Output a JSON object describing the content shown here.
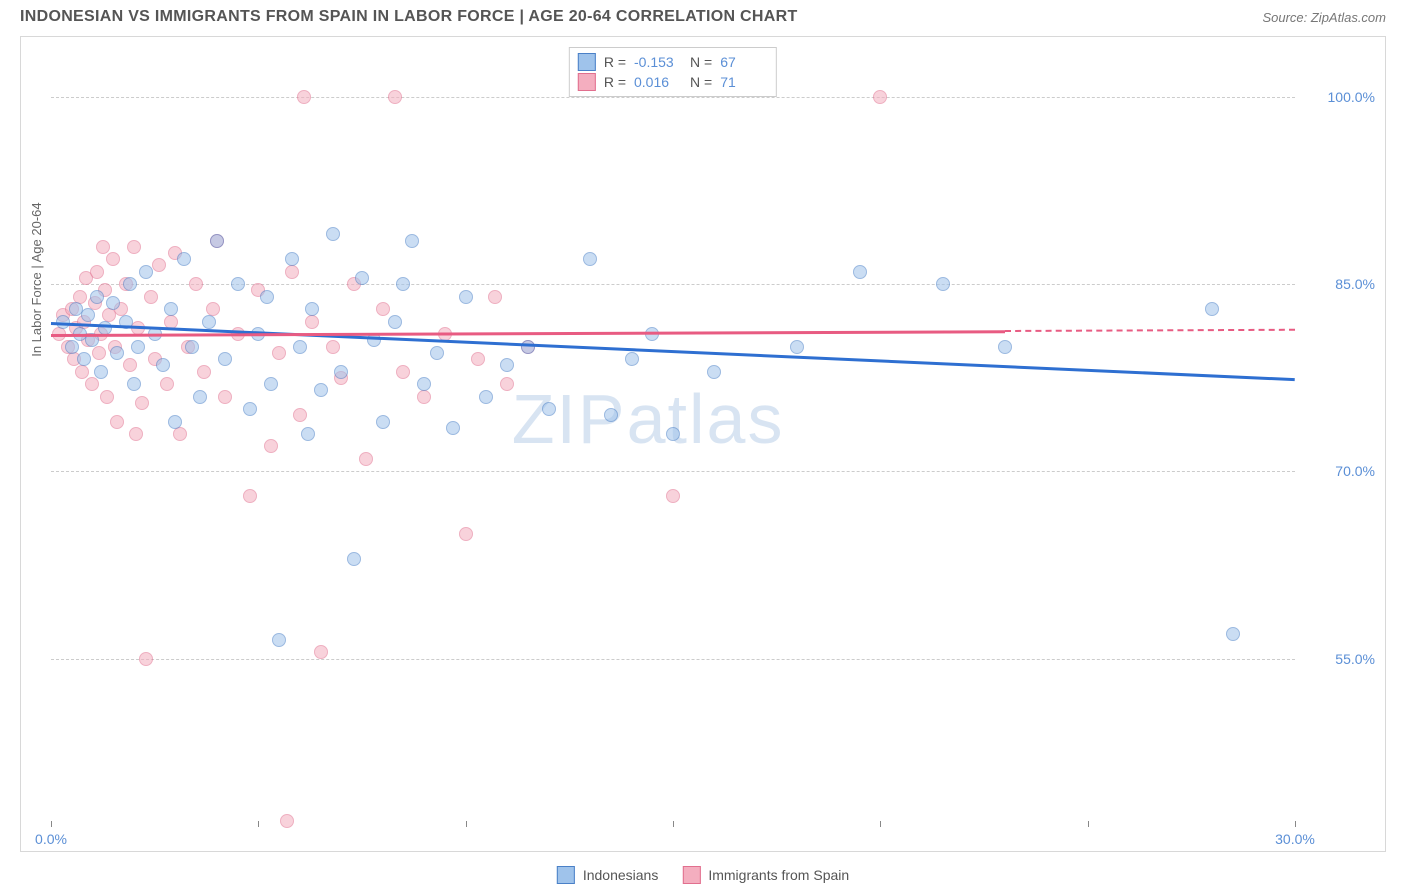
{
  "header": {
    "title": "INDONESIAN VS IMMIGRANTS FROM SPAIN IN LABOR FORCE | AGE 20-64 CORRELATION CHART",
    "source_prefix": "Source: ",
    "source_name": "ZipAtlas.com"
  },
  "chart": {
    "type": "scatter",
    "ylabel": "In Labor Force | Age 20-64",
    "watermark": "ZIPatlas",
    "background_color": "#ffffff",
    "border_color": "#d8d8d8",
    "grid_color": "#cccccc",
    "tick_label_color": "#5b8fd6",
    "xlim": [
      0,
      30
    ],
    "ylim": [
      42,
      104
    ],
    "xticks": [
      0,
      5,
      10,
      15,
      20,
      25,
      30
    ],
    "xtick_labels": {
      "0": "0.0%",
      "30": "30.0%"
    },
    "yticks": [
      55,
      70,
      85,
      100
    ],
    "ytick_labels": {
      "55": "55.0%",
      "70": "70.0%",
      "85": "85.0%",
      "100": "100.0%"
    },
    "series": [
      {
        "key": "indonesians",
        "label": "Indonesians",
        "fill": "#9fc3eb",
        "fill_opacity": 0.55,
        "stroke": "#4a80c7",
        "trend_color": "#2e6fd1",
        "R": "-0.153",
        "N": "67",
        "trend": {
          "x0": 0,
          "y0": 82,
          "x1": 30,
          "y1": 77.5
        },
        "points": [
          [
            0.3,
            82
          ],
          [
            0.5,
            80
          ],
          [
            0.6,
            83
          ],
          [
            0.7,
            81
          ],
          [
            0.8,
            79
          ],
          [
            0.9,
            82.5
          ],
          [
            1.0,
            80.5
          ],
          [
            1.1,
            84
          ],
          [
            1.2,
            78
          ],
          [
            1.3,
            81.5
          ],
          [
            1.5,
            83.5
          ],
          [
            1.6,
            79.5
          ],
          [
            1.8,
            82
          ],
          [
            1.9,
            85
          ],
          [
            2.0,
            77
          ],
          [
            2.1,
            80
          ],
          [
            2.3,
            86
          ],
          [
            2.5,
            81
          ],
          [
            2.7,
            78.5
          ],
          [
            2.9,
            83
          ],
          [
            3.0,
            74
          ],
          [
            3.2,
            87
          ],
          [
            3.4,
            80
          ],
          [
            3.6,
            76
          ],
          [
            3.8,
            82
          ],
          [
            4.0,
            88.5
          ],
          [
            4.2,
            79
          ],
          [
            4.5,
            85
          ],
          [
            4.8,
            75
          ],
          [
            5.0,
            81
          ],
          [
            5.3,
            77
          ],
          [
            5.5,
            56.5
          ],
          [
            5.8,
            87
          ],
          [
            6.0,
            80
          ],
          [
            6.3,
            83
          ],
          [
            6.5,
            76.5
          ],
          [
            6.8,
            89
          ],
          [
            7.0,
            78
          ],
          [
            7.3,
            63
          ],
          [
            7.5,
            85.5
          ],
          [
            7.8,
            80.5
          ],
          [
            8.0,
            74
          ],
          [
            8.3,
            82
          ],
          [
            8.7,
            88.5
          ],
          [
            9.0,
            77
          ],
          [
            9.3,
            79.5
          ],
          [
            9.7,
            73.5
          ],
          [
            10.0,
            84
          ],
          [
            10.5,
            76
          ],
          [
            11.0,
            78.5
          ],
          [
            11.5,
            80
          ],
          [
            12.0,
            75
          ],
          [
            13.0,
            87
          ],
          [
            13.5,
            74.5
          ],
          [
            14.0,
            79
          ],
          [
            14.5,
            81
          ],
          [
            15.0,
            73
          ],
          [
            16.0,
            78
          ],
          [
            18.0,
            80
          ],
          [
            19.5,
            86
          ],
          [
            21.5,
            85
          ],
          [
            23.0,
            80
          ],
          [
            28.0,
            83
          ],
          [
            28.5,
            57
          ],
          [
            5.2,
            84
          ],
          [
            6.2,
            73
          ],
          [
            8.5,
            85
          ]
        ]
      },
      {
        "key": "spain",
        "label": "Immigrants from Spain",
        "fill": "#f4aebf",
        "fill_opacity": 0.55,
        "stroke": "#e16f8e",
        "trend_color": "#e85b82",
        "R": "0.016",
        "N": "71",
        "trend": {
          "x0": 0,
          "y0": 81,
          "x1": 23,
          "y1": 81.3
        },
        "trend_dash": {
          "x0": 23,
          "y0": 81.3,
          "x1": 30,
          "y1": 81.4
        },
        "points": [
          [
            0.2,
            81
          ],
          [
            0.3,
            82.5
          ],
          [
            0.4,
            80
          ],
          [
            0.5,
            83
          ],
          [
            0.55,
            79
          ],
          [
            0.6,
            81.5
          ],
          [
            0.7,
            84
          ],
          [
            0.75,
            78
          ],
          [
            0.8,
            82
          ],
          [
            0.85,
            85.5
          ],
          [
            0.9,
            80.5
          ],
          [
            1.0,
            77
          ],
          [
            1.05,
            83.5
          ],
          [
            1.1,
            86
          ],
          [
            1.15,
            79.5
          ],
          [
            1.2,
            81
          ],
          [
            1.3,
            84.5
          ],
          [
            1.35,
            76
          ],
          [
            1.4,
            82.5
          ],
          [
            1.5,
            87
          ],
          [
            1.55,
            80
          ],
          [
            1.6,
            74
          ],
          [
            1.7,
            83
          ],
          [
            1.8,
            85
          ],
          [
            1.9,
            78.5
          ],
          [
            2.0,
            88
          ],
          [
            2.1,
            81.5
          ],
          [
            2.2,
            75.5
          ],
          [
            2.3,
            55
          ],
          [
            2.4,
            84
          ],
          [
            2.5,
            79
          ],
          [
            2.6,
            86.5
          ],
          [
            2.8,
            77
          ],
          [
            2.9,
            82
          ],
          [
            3.0,
            87.5
          ],
          [
            3.1,
            73
          ],
          [
            3.3,
            80
          ],
          [
            3.5,
            85
          ],
          [
            3.7,
            78
          ],
          [
            3.9,
            83
          ],
          [
            4.0,
            88.5
          ],
          [
            4.2,
            76
          ],
          [
            4.5,
            81
          ],
          [
            4.8,
            68
          ],
          [
            5.0,
            84.5
          ],
          [
            5.3,
            72
          ],
          [
            5.5,
            79.5
          ],
          [
            5.8,
            86
          ],
          [
            6.0,
            74.5
          ],
          [
            6.3,
            82
          ],
          [
            6.5,
            55.5
          ],
          [
            6.8,
            80
          ],
          [
            7.0,
            77.5
          ],
          [
            7.3,
            85
          ],
          [
            7.6,
            71
          ],
          [
            8.0,
            83
          ],
          [
            8.3,
            100
          ],
          [
            8.5,
            78
          ],
          [
            9.0,
            76
          ],
          [
            9.5,
            81
          ],
          [
            10.0,
            65
          ],
          [
            10.3,
            79
          ],
          [
            10.7,
            84
          ],
          [
            11.0,
            77
          ],
          [
            11.5,
            80
          ],
          [
            5.7,
            42
          ],
          [
            6.1,
            100
          ],
          [
            15.0,
            68
          ],
          [
            20.0,
            100
          ],
          [
            1.25,
            88
          ],
          [
            2.05,
            73
          ]
        ]
      }
    ],
    "stats_labels": {
      "R": "R =",
      "N": "N ="
    }
  },
  "legend": {
    "items": [
      {
        "key": "indonesians"
      },
      {
        "key": "spain"
      }
    ]
  }
}
